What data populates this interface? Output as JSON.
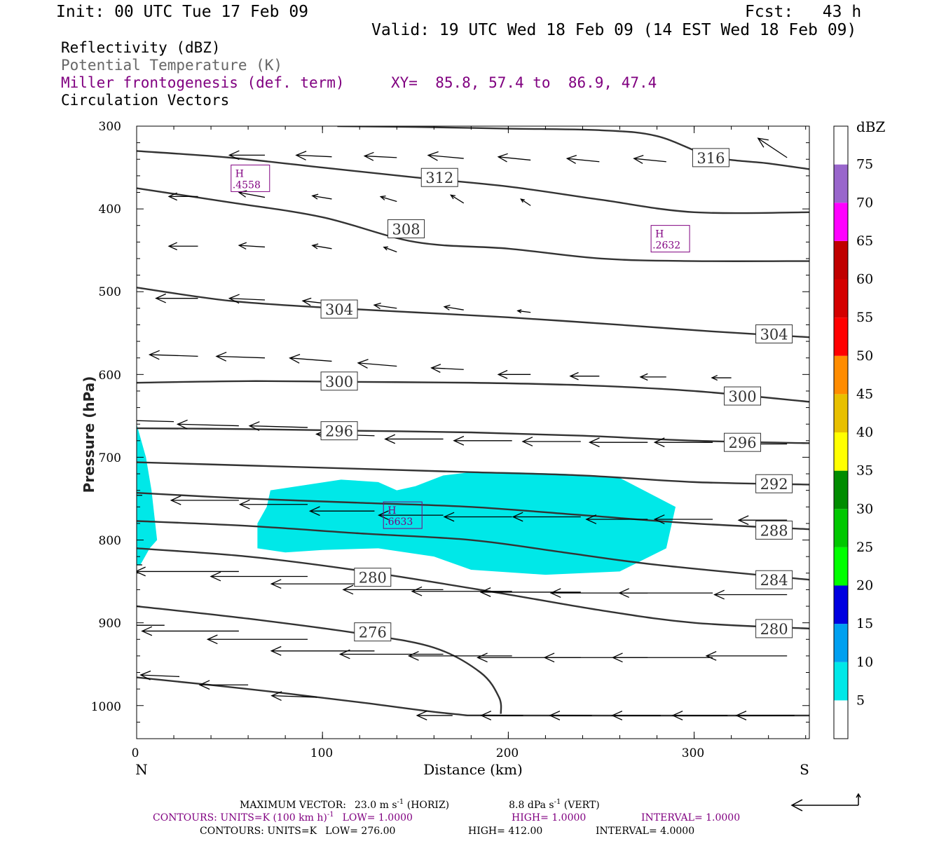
{
  "header": {
    "init": "Init: 00 UTC Tue 17 Feb 09",
    "fcst": "Fcst:   43 h",
    "valid": "Valid: 19 UTC Wed 18 Feb 09 (14 EST Wed 18 Feb 09)"
  },
  "fields": {
    "reflectivity": "Reflectivity (dBZ)",
    "theta": "Potential Temperature (K)",
    "miller": "Miller frontogenesis (def. term)",
    "xy": "XY=  85.8, 57.4 to  86.9, 47.4",
    "vectors": "Circulation Vectors"
  },
  "colors": {
    "reflectivity_5_10": "#00e8e8",
    "contour_line": "#333333",
    "frontogenesis_label": "#800080"
  },
  "chart_data": {
    "type": "cross-section",
    "xlabel": "Distance (km)",
    "ylabel": "Pressure (hPa)",
    "xlim": [
      0,
      362
    ],
    "ylim": [
      1040,
      300
    ],
    "x_ticks": [
      {
        "value": 0,
        "label": "0"
      },
      {
        "value": 100,
        "label": "100"
      },
      {
        "value": 200,
        "label": "200"
      },
      {
        "value": 300,
        "label": "300"
      }
    ],
    "y_ticks": [
      {
        "value": 300,
        "label": "300"
      },
      {
        "value": 400,
        "label": "400"
      },
      {
        "value": 500,
        "label": "500"
      },
      {
        "value": 600,
        "label": "600"
      },
      {
        "value": 700,
        "label": "700"
      },
      {
        "value": 800,
        "label": "800"
      },
      {
        "value": 900,
        "label": "900"
      },
      {
        "value": 1000,
        "label": "1000"
      }
    ],
    "end_labels": {
      "left": "N",
      "right": "S"
    },
    "theta_contours": [
      {
        "label": "316",
        "points": [
          [
            108,
            300
          ],
          [
            150,
            301
          ],
          [
            200,
            303
          ],
          [
            250,
            305
          ],
          [
            280,
            312
          ],
          [
            310,
            337
          ],
          [
            340,
            345
          ],
          [
            362,
            352
          ]
        ],
        "labels_at": [
          [
            309,
            338
          ]
        ]
      },
      {
        "label": "312",
        "points": [
          [
            0,
            330
          ],
          [
            50,
            338
          ],
          [
            100,
            350
          ],
          [
            150,
            362
          ],
          [
            200,
            373
          ],
          [
            250,
            389
          ],
          [
            300,
            404
          ],
          [
            362,
            404
          ]
        ],
        "labels_at": [
          [
            163,
            362
          ]
        ]
      },
      {
        "label": "308",
        "points": [
          [
            0,
            375
          ],
          [
            50,
            392
          ],
          [
            100,
            410
          ],
          [
            150,
            440
          ],
          [
            200,
            448
          ],
          [
            250,
            460
          ],
          [
            300,
            463
          ],
          [
            362,
            463
          ]
        ],
        "labels_at": [
          [
            145,
            424
          ]
        ]
      },
      {
        "label": "304",
        "points": [
          [
            0,
            495
          ],
          [
            50,
            511
          ],
          [
            100,
            519
          ],
          [
            150,
            525
          ],
          [
            200,
            531
          ],
          [
            260,
            540
          ],
          [
            310,
            548
          ],
          [
            362,
            555
          ]
        ],
        "labels_at": [
          [
            109,
            521
          ],
          [
            343,
            551
          ]
        ]
      },
      {
        "label": "300",
        "points": [
          [
            0,
            610
          ],
          [
            60,
            608
          ],
          [
            120,
            609
          ],
          [
            180,
            610
          ],
          [
            240,
            613
          ],
          [
            300,
            620
          ],
          [
            362,
            633
          ]
        ],
        "labels_at": [
          [
            109,
            608
          ],
          [
            326,
            626
          ]
        ]
      },
      {
        "label": "296",
        "points": [
          [
            0,
            665
          ],
          [
            60,
            666
          ],
          [
            120,
            668
          ],
          [
            180,
            670
          ],
          [
            240,
            674
          ],
          [
            300,
            680
          ],
          [
            362,
            683
          ]
        ],
        "labels_at": [
          [
            109,
            668
          ],
          [
            326,
            682
          ]
        ]
      },
      {
        "label": "292",
        "points": [
          [
            0,
            706
          ],
          [
            60,
            710
          ],
          [
            120,
            714
          ],
          [
            180,
            718
          ],
          [
            240,
            722
          ],
          [
            300,
            730
          ],
          [
            362,
            733
          ]
        ],
        "labels_at": [
          [
            343,
            732
          ]
        ]
      },
      {
        "label": "288",
        "points": [
          [
            0,
            743
          ],
          [
            60,
            750
          ],
          [
            120,
            755
          ],
          [
            180,
            760
          ],
          [
            240,
            770
          ],
          [
            300,
            780
          ],
          [
            362,
            787
          ]
        ],
        "labels_at": [
          [
            343,
            788
          ]
        ]
      },
      {
        "label": "284",
        "points": [
          [
            0,
            777
          ],
          [
            60,
            783
          ],
          [
            120,
            792
          ],
          [
            180,
            800
          ],
          [
            230,
            815
          ],
          [
            280,
            830
          ],
          [
            362,
            848
          ]
        ],
        "labels_at": [
          [
            343,
            848
          ]
        ]
      },
      {
        "label": "280",
        "points": [
          [
            0,
            810
          ],
          [
            60,
            820
          ],
          [
            120,
            837
          ],
          [
            190,
            862
          ],
          [
            250,
            885
          ],
          [
            300,
            900
          ],
          [
            362,
            907
          ]
        ],
        "labels_at": [
          [
            127,
            845
          ],
          [
            343,
            907
          ]
        ]
      },
      {
        "label": "276",
        "points": [
          [
            0,
            880
          ],
          [
            60,
            895
          ],
          [
            120,
            913
          ],
          [
            160,
            930
          ],
          [
            185,
            960
          ],
          [
            195,
            990
          ],
          [
            196,
            1010
          ]
        ],
        "labels_at": [
          [
            127,
            911
          ]
        ]
      },
      {
        "label": "",
        "points": [
          [
            0,
            966
          ],
          [
            60,
            980
          ],
          [
            120,
            996
          ],
          [
            170,
            1010
          ],
          [
            200,
            1012
          ],
          [
            362,
            1012
          ]
        ],
        "labels_at": []
      }
    ],
    "frontogenesis_maxima": [
      {
        "symbol": "H",
        "value": ".4558",
        "x": 61,
        "p": 363
      },
      {
        "symbol": "H",
        "value": ".2632",
        "x": 287,
        "p": 436
      },
      {
        "symbol": "H",
        "value": ".6633",
        "x": 143,
        "p": 770
      }
    ],
    "reflectivity_regions": [
      {
        "dbz_range": "5-10",
        "polygon": [
          [
            0,
            660
          ],
          [
            5,
            700
          ],
          [
            8,
            740
          ],
          [
            11,
            800
          ],
          [
            7,
            810
          ],
          [
            2,
            830
          ],
          [
            0,
            830
          ]
        ]
      },
      {
        "dbz_range": "5-10",
        "polygon": [
          [
            72,
            740
          ],
          [
            110,
            727
          ],
          [
            130,
            730
          ],
          [
            140,
            740
          ],
          [
            150,
            735
          ],
          [
            165,
            722
          ],
          [
            180,
            718
          ],
          [
            200,
            718
          ],
          [
            230,
            720
          ],
          [
            260,
            725
          ],
          [
            290,
            760
          ],
          [
            285,
            810
          ],
          [
            260,
            838
          ],
          [
            220,
            842
          ],
          [
            180,
            836
          ],
          [
            160,
            820
          ],
          [
            130,
            810
          ],
          [
            100,
            812
          ],
          [
            80,
            815
          ],
          [
            65,
            810
          ],
          [
            65,
            780
          ],
          [
            70,
            760
          ]
        ]
      }
    ],
    "vectors": [
      {
        "x": 69,
        "p": 335,
        "u": -2.2,
        "w": 0
      },
      {
        "x": 105,
        "p": 337,
        "u": -2.2,
        "w": 0.1
      },
      {
        "x": 140,
        "p": 338,
        "u": -2.0,
        "w": 0.1
      },
      {
        "x": 176,
        "p": 339,
        "u": -2.2,
        "w": 0.2
      },
      {
        "x": 212,
        "p": 341,
        "u": -2.0,
        "w": 0.2
      },
      {
        "x": 249,
        "p": 343,
        "u": -2.0,
        "w": 0.2
      },
      {
        "x": 285,
        "p": 343,
        "u": -2.0,
        "w": 0.2
      },
      {
        "x": 350,
        "p": 338,
        "u": -1.8,
        "w": 1.2
      },
      {
        "x": 33,
        "p": 385,
        "u": -1.8,
        "w": 0
      },
      {
        "x": 69,
        "p": 386,
        "u": -1.6,
        "w": 0.3
      },
      {
        "x": 105,
        "p": 388,
        "u": -1.2,
        "w": 0.2
      },
      {
        "x": 140,
        "p": 391,
        "u": -1.0,
        "w": 0.3
      },
      {
        "x": 176,
        "p": 393,
        "u": -0.8,
        "w": 0.5
      },
      {
        "x": 212,
        "p": 396,
        "u": -0.6,
        "w": 0.4
      },
      {
        "x": 33,
        "p": 445,
        "u": -1.8,
        "w": 0
      },
      {
        "x": 69,
        "p": 446,
        "u": -1.6,
        "w": 0.1
      },
      {
        "x": 105,
        "p": 448,
        "u": -1.2,
        "w": 0.2
      },
      {
        "x": 140,
        "p": 452,
        "u": -0.8,
        "w": 0.3
      },
      {
        "x": 33,
        "p": 508,
        "u": -2.6,
        "w": 0
      },
      {
        "x": 69,
        "p": 510,
        "u": -2.2,
        "w": 0.1
      },
      {
        "x": 105,
        "p": 515,
        "u": -1.8,
        "w": 0.2
      },
      {
        "x": 140,
        "p": 520,
        "u": -1.4,
        "w": 0.2
      },
      {
        "x": 176,
        "p": 522,
        "u": -1.2,
        "w": 0.2
      },
      {
        "x": 212,
        "p": 525,
        "u": -0.8,
        "w": 0.1
      },
      {
        "x": 33,
        "p": 578,
        "u": -3.0,
        "w": 0.1
      },
      {
        "x": 69,
        "p": 580,
        "u": -3.0,
        "w": 0.1
      },
      {
        "x": 105,
        "p": 584,
        "u": -2.6,
        "w": 0.2
      },
      {
        "x": 140,
        "p": 590,
        "u": -2.4,
        "w": 0.2
      },
      {
        "x": 176,
        "p": 594,
        "u": -2.0,
        "w": 0.1
      },
      {
        "x": 212,
        "p": 600,
        "u": -2.0,
        "w": 0
      },
      {
        "x": 249,
        "p": 602,
        "u": -1.8,
        "w": 0
      },
      {
        "x": 285,
        "p": 603,
        "u": -1.6,
        "w": 0
      },
      {
        "x": 320,
        "p": 604,
        "u": -1.2,
        "w": 0
      },
      {
        "x": 20,
        "p": 657,
        "u": -3.6,
        "w": 0.1
      },
      {
        "x": 55,
        "p": 662,
        "u": -3.8,
        "w": 0.1
      },
      {
        "x": 92,
        "p": 664,
        "u": -3.6,
        "w": 0.1
      },
      {
        "x": 128,
        "p": 674,
        "u": -3.6,
        "w": 0.1
      },
      {
        "x": 165,
        "p": 678,
        "u": -3.6,
        "w": 0
      },
      {
        "x": 202,
        "p": 680,
        "u": -3.6,
        "w": 0
      },
      {
        "x": 239,
        "p": 681,
        "u": -3.6,
        "w": 0
      },
      {
        "x": 275,
        "p": 682,
        "u": -3.6,
        "w": 0
      },
      {
        "x": 310,
        "p": 682,
        "u": -3.6,
        "w": 0
      },
      {
        "x": 350,
        "p": 684,
        "u": -3.6,
        "w": 0
      },
      {
        "x": 3,
        "p": 746,
        "u": -4.0,
        "w": 0
      },
      {
        "x": 55,
        "p": 752,
        "u": -4.2,
        "w": 0
      },
      {
        "x": 92,
        "p": 757,
        "u": -4.2,
        "w": 0
      },
      {
        "x": 128,
        "p": 765,
        "u": -4.0,
        "w": 0
      },
      {
        "x": 165,
        "p": 770,
        "u": -4.0,
        "w": 0
      },
      {
        "x": 202,
        "p": 772,
        "u": -4.2,
        "w": 0
      },
      {
        "x": 239,
        "p": 772,
        "u": -4.2,
        "w": 0
      },
      {
        "x": 275,
        "p": 775,
        "u": -3.8,
        "w": 0
      },
      {
        "x": 310,
        "p": 775,
        "u": -3.6,
        "w": 0
      },
      {
        "x": 350,
        "p": 776,
        "u": -3.0,
        "w": 0
      },
      {
        "x": 3,
        "p": 830,
        "u": -6.0,
        "w": 0
      },
      {
        "x": 55,
        "p": 838,
        "u": -6.4,
        "w": 0
      },
      {
        "x": 92,
        "p": 844,
        "u": -6.0,
        "w": 0
      },
      {
        "x": 128,
        "p": 853,
        "u": -6.4,
        "w": 0
      },
      {
        "x": 165,
        "p": 860,
        "u": -6.2,
        "w": 0
      },
      {
        "x": 202,
        "p": 862,
        "u": -6.2,
        "w": 0
      },
      {
        "x": 239,
        "p": 863,
        "u": -6.2,
        "w": 0
      },
      {
        "x": 275,
        "p": 864,
        "u": -6.0,
        "w": 0
      },
      {
        "x": 310,
        "p": 864,
        "u": -5.8,
        "w": 0
      },
      {
        "x": 350,
        "p": 866,
        "u": -4.5,
        "w": 0
      },
      {
        "x": 15,
        "p": 903,
        "u": -5.6,
        "w": 0
      },
      {
        "x": 55,
        "p": 910,
        "u": -6.0,
        "w": 0
      },
      {
        "x": 92,
        "p": 920,
        "u": -6.2,
        "w": 0
      },
      {
        "x": 128,
        "p": 934,
        "u": -6.4,
        "w": 0
      },
      {
        "x": 165,
        "p": 938,
        "u": -6.4,
        "w": 0
      },
      {
        "x": 202,
        "p": 940,
        "u": -6.4,
        "w": 0
      },
      {
        "x": 239,
        "p": 942,
        "u": -6.4,
        "w": 0
      },
      {
        "x": 275,
        "p": 942,
        "u": -6.4,
        "w": 0
      },
      {
        "x": 310,
        "p": 942,
        "u": -6.2,
        "w": 0
      },
      {
        "x": 350,
        "p": 940,
        "u": -5.0,
        "w": 0
      },
      {
        "x": 23,
        "p": 965,
        "u": -2.4,
        "w": 0.1
      },
      {
        "x": 60,
        "p": 975,
        "u": -3.0,
        "w": 0
      },
      {
        "x": 97,
        "p": 990,
        "u": -2.8,
        "w": 0.1
      },
      {
        "x": 170,
        "p": 1012,
        "u": -2.2,
        "w": 0
      },
      {
        "x": 208,
        "p": 1012,
        "u": -2.6,
        "w": 0
      },
      {
        "x": 245,
        "p": 1012,
        "u": -2.6,
        "w": 0
      },
      {
        "x": 282,
        "p": 1012,
        "u": -3.0,
        "w": 0
      },
      {
        "x": 318,
        "p": 1012,
        "u": -3.4,
        "w": 0
      },
      {
        "x": 354,
        "p": 1012,
        "u": -3.6,
        "w": 0
      }
    ]
  },
  "colorbar": {
    "title": "dBZ",
    "bins": [
      {
        "label": "",
        "color": "#ffffff"
      },
      {
        "label": "5",
        "color": "#00e8e8"
      },
      {
        "label": "10",
        "color": "#00a0f0"
      },
      {
        "label": "15",
        "color": "#0000e0"
      },
      {
        "label": "20",
        "color": "#00ff00"
      },
      {
        "label": "25",
        "color": "#00c800"
      },
      {
        "label": "30",
        "color": "#008c00"
      },
      {
        "label": "35",
        "color": "#ffff00"
      },
      {
        "label": "40",
        "color": "#e8c000"
      },
      {
        "label": "45",
        "color": "#ff8c00"
      },
      {
        "label": "50",
        "color": "#ff0000"
      },
      {
        "label": "55",
        "color": "#d40000"
      },
      {
        "label": "60",
        "color": "#c00000"
      },
      {
        "label": "65",
        "color": "#ff00ff"
      },
      {
        "label": "70",
        "color": "#9966cc"
      },
      {
        "label": "75",
        "color": "#ffffff"
      }
    ]
  },
  "footer": {
    "max_vector_label": "MAXIMUM VECTOR:",
    "max_vector_horiz_value": "23.0 m s",
    "max_vector_horiz_exp": "-1",
    "max_vector_horiz_unit": " (HORIZ)",
    "max_vector_vert_value": "8.8 dPa s",
    "max_vector_vert_exp": "-1",
    "max_vector_vert_unit": " (VERT)",
    "contours1_prefix": "CONTOURS:  UNITS=K (100 km h)",
    "contours1_exp": "-1",
    "contours1_low": "LOW=   1.0000",
    "contours1_high": "HIGH=   1.0000",
    "contours1_interval": "INTERVAL=    1.0000",
    "contours2_prefix": "CONTOURS:  UNITS=K",
    "contours2_low": "LOW=   276.00",
    "contours2_high": "HIGH=   412.00",
    "contours2_interval": "INTERVAL=    4.0000"
  }
}
